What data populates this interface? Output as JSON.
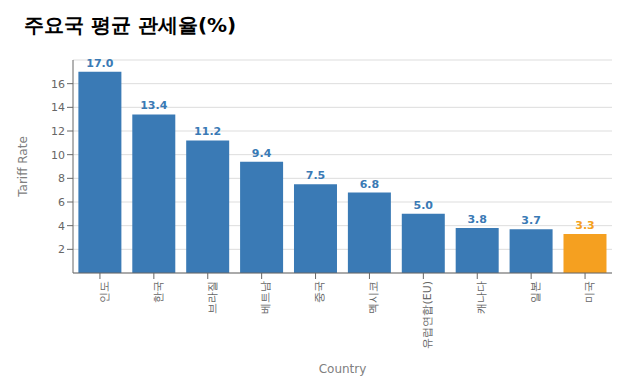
{
  "chart_data": {
    "type": "bar",
    "title": "주요국 평균 관세율(%)",
    "xlabel": "Country",
    "ylabel": "Tariff Rate",
    "categories": [
      "인도",
      "한국",
      "브라질",
      "베트남",
      "중국",
      "멕시코",
      "유럽연합(EU)",
      "캐나다",
      "일본",
      "미국"
    ],
    "values": [
      17.0,
      13.4,
      11.2,
      9.4,
      7.5,
      6.8,
      5.0,
      3.8,
      3.7,
      3.3
    ],
    "value_labels": [
      "17.0",
      "13.4",
      "11.2",
      "9.4",
      "7.5",
      "6.8",
      "5.0",
      "3.8",
      "3.7",
      "3.3"
    ],
    "colors": [
      "#3a7ab5",
      "#3a7ab5",
      "#3a7ab5",
      "#3a7ab5",
      "#3a7ab5",
      "#3a7ab5",
      "#3a7ab5",
      "#3a7ab5",
      "#3a7ab5",
      "#f5a020"
    ],
    "ylim": [
      0,
      18
    ],
    "yticks": [
      2,
      4,
      6,
      8,
      10,
      12,
      14,
      16
    ],
    "grid": true,
    "data_labels": true
  }
}
